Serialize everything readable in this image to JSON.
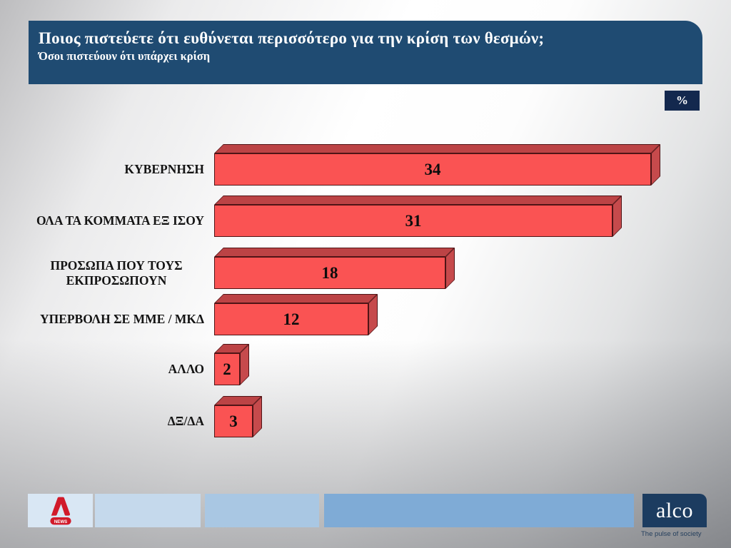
{
  "header": {
    "title": "Ποιος πιστεύετε ότι ευθύνεται περισσότερο για την κρίση των θεσμών;",
    "subtitle": "Όσοι πιστεύουν ότι υπάρχει κρίση",
    "unit_badge": "%"
  },
  "chart_data": {
    "type": "bar",
    "orientation": "horizontal",
    "categories": [
      "ΚΥΒΕΡΝΗΣΗ",
      "ΟΛΑ ΤΑ ΚΟΜΜΑΤΑ ΕΞ ΙΣΟΥ",
      "ΠΡΟΣΩΠΑ ΠΟΥ ΤΟΥΣ ΕΚΠΡΟΣΩΠΟΥΝ",
      "ΥΠΕΡΒΟΛΗ ΣΕ ΜΜΕ / ΜΚΔ",
      "ΑΛΛΟ",
      "ΔΞ/ΔΑ"
    ],
    "values": [
      34,
      31,
      18,
      12,
      2,
      3
    ],
    "unit": "%",
    "xlim": [
      0,
      34
    ],
    "grid": false,
    "legend": "none",
    "value_labels": "inside-center",
    "bar_front_color": "#fa5353",
    "bar_top_color": "#bc4345",
    "bar_side_color": "#c64a4c",
    "bar_outline_color": "#4f1416",
    "value_label_color": "#0d0d0d"
  },
  "footer": {
    "alpha_news_label": "NEWS",
    "alco": {
      "name": "alco",
      "tagline": "The pulse of society"
    }
  },
  "colors": {
    "header_bg": "#1f4b72",
    "badge_bg": "#13284e",
    "footer_boxes": [
      "#d9e7f4",
      "#c5d9ec",
      "#a9c7e3",
      "#7fabd6"
    ],
    "alco_bg": "#1c3c60",
    "alpha_red": "#d11a2a"
  }
}
